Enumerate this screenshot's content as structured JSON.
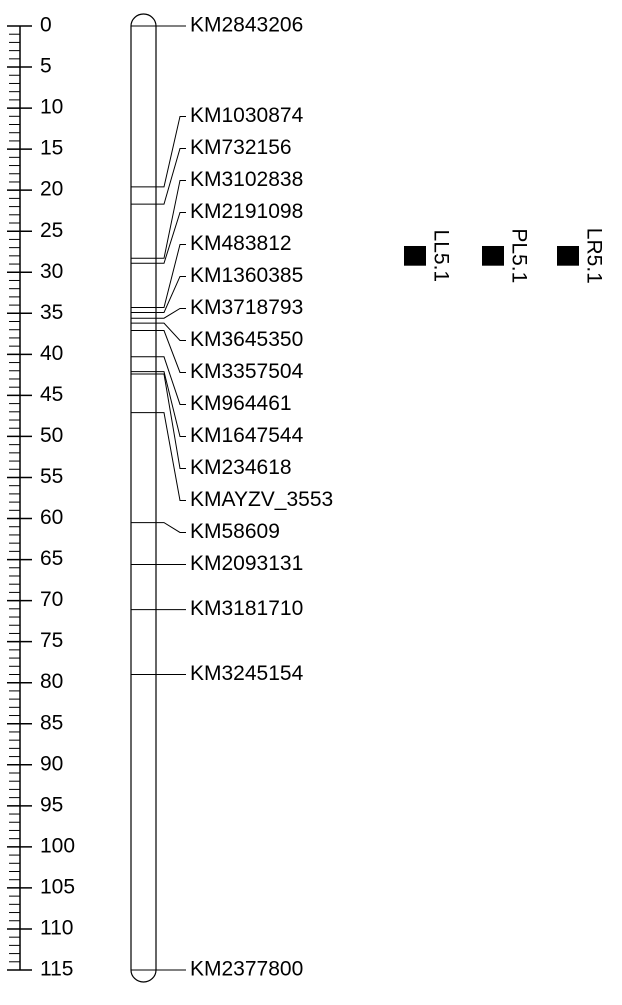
{
  "chart_data": {
    "type": "linkage_map",
    "ylim": [
      0,
      115
    ],
    "yticks": [
      0,
      5,
      10,
      15,
      20,
      25,
      30,
      35,
      40,
      45,
      50,
      55,
      60,
      65,
      70,
      75,
      80,
      85,
      90,
      95,
      100,
      105,
      110,
      115
    ],
    "minor_tick_step": 1,
    "markers": [
      {
        "name": "KM2843206",
        "position": 0
      },
      {
        "name": "KM1030874",
        "position": 19.6
      },
      {
        "name": "KM732156",
        "position": 21.7
      },
      {
        "name": "KM3102838",
        "position": 28.3
      },
      {
        "name": "KM2191098",
        "position": 28.9
      },
      {
        "name": "KM483812",
        "position": 34.3
      },
      {
        "name": "KM1360385",
        "position": 34.9
      },
      {
        "name": "KM3718793",
        "position": 35.6
      },
      {
        "name": "KM3645350",
        "position": 36.2
      },
      {
        "name": "KM3357504",
        "position": 37.1
      },
      {
        "name": "KM964461",
        "position": 40.3
      },
      {
        "name": "KM1647544",
        "position": 42.1
      },
      {
        "name": "KM234618",
        "position": 42.4
      },
      {
        "name": "KMAYZV_3553",
        "position": 47.1
      },
      {
        "name": "KM58609",
        "position": 60.5
      },
      {
        "name": "KM2093131",
        "position": 65.6
      },
      {
        "name": "KM3181710",
        "position": 71.1
      },
      {
        "name": "KM3245154",
        "position": 79.0
      },
      {
        "name": "KM2377800",
        "position": 115
      }
    ],
    "qtls": [
      {
        "name": "LL5.1",
        "start": 26.8,
        "end": 29.2,
        "color": "#000000"
      },
      {
        "name": "PL5.1",
        "start": 26.8,
        "end": 29.2,
        "color": "#000000"
      },
      {
        "name": "LR5.1",
        "start": 26.8,
        "end": 29.2,
        "color": "#000000"
      }
    ]
  }
}
